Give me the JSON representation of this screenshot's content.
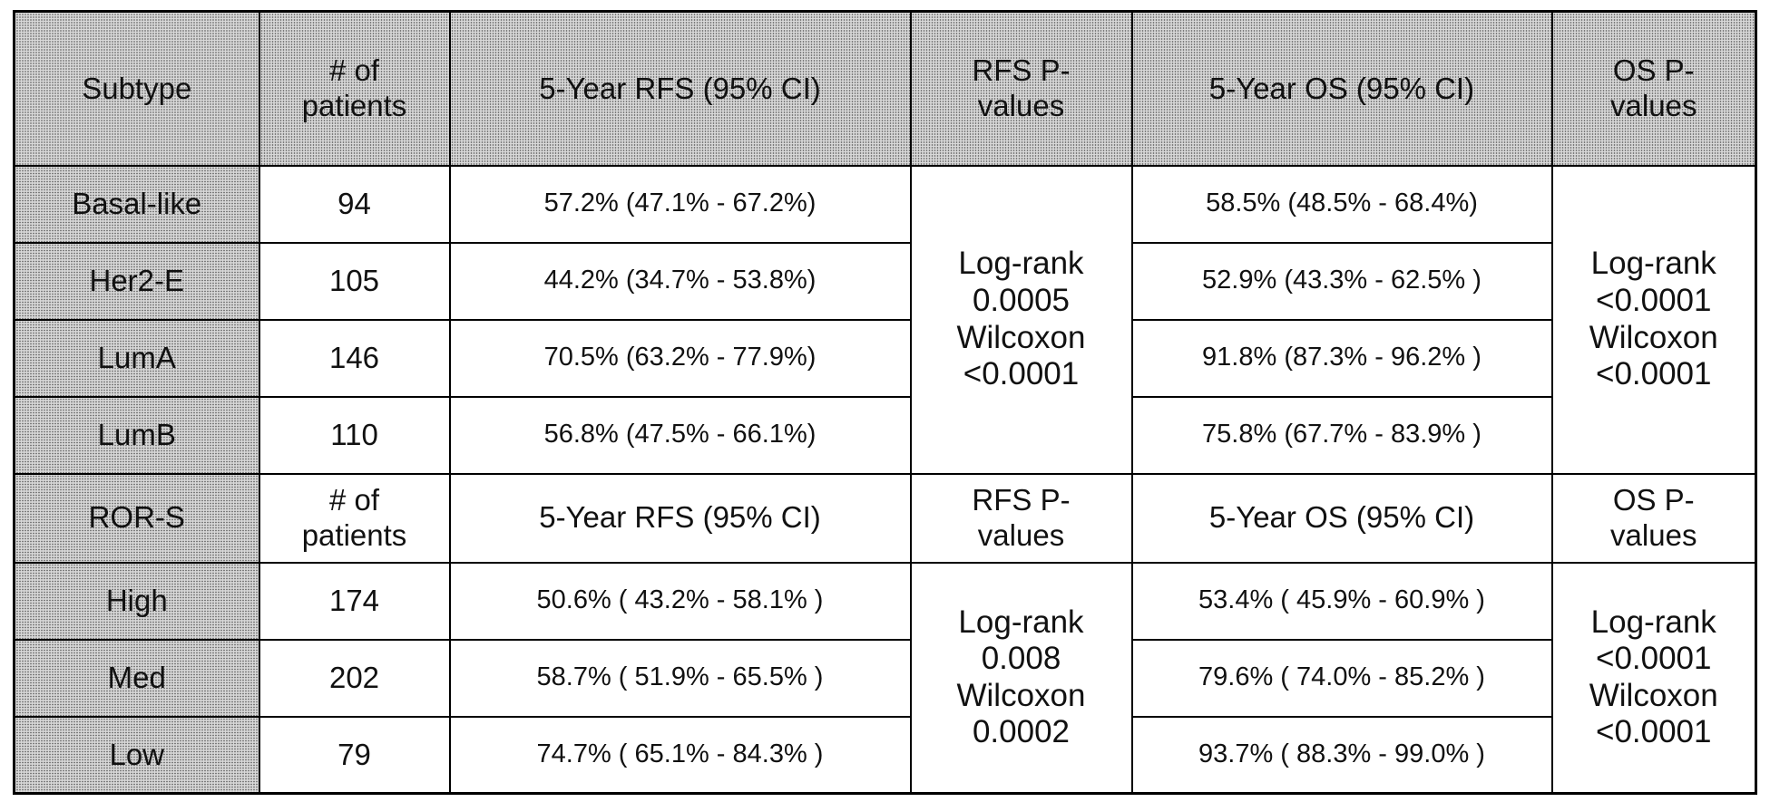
{
  "subtype_table": {
    "headers": {
      "subtype": "Subtype",
      "patients": [
        "# of",
        "patients"
      ],
      "rfs": "5-Year RFS (95% CI)",
      "rfs_p": [
        "RFS P-",
        "values"
      ],
      "os": "5-Year OS (95% CI)",
      "os_p": [
        "OS P-",
        "values"
      ]
    },
    "rows": [
      {
        "label": "Basal-like",
        "n": "94",
        "rfs": "57.2% (47.1% - 67.2%)",
        "os": "58.5% (48.5% - 68.4%)"
      },
      {
        "label": "Her2-E",
        "n": "105",
        "rfs": "44.2% (34.7% - 53.8%)",
        "os": "52.9% (43.3% - 62.5% )"
      },
      {
        "label": "LumA",
        "n": "146",
        "rfs": "70.5% (63.2% - 77.9%)",
        "os": "91.8% (87.3% - 96.2% )"
      },
      {
        "label": "LumB",
        "n": "110",
        "rfs": "56.8% (47.5% - 66.1%)",
        "os": "75.8% (67.7% - 83.9% )"
      }
    ],
    "rfs_p": [
      "Log-rank",
      "0.0005",
      "Wilcoxon",
      "<0.0001"
    ],
    "os_p": [
      "Log-rank",
      "<0.0001",
      "Wilcoxon",
      "<0.0001"
    ]
  },
  "ror_table": {
    "headers": {
      "subtype": "ROR-S",
      "patients": [
        "# of",
        "patients"
      ],
      "rfs": "5-Year RFS (95% CI)",
      "rfs_p": [
        "RFS P-",
        "values"
      ],
      "os": "5-Year OS (95% CI)",
      "os_p": [
        "OS P-",
        "values"
      ]
    },
    "rows": [
      {
        "label": "High",
        "n": "174",
        "rfs": "50.6% ( 43.2% - 58.1% )",
        "os": "53.4% ( 45.9% - 60.9% )"
      },
      {
        "label": "Med",
        "n": "202",
        "rfs": "58.7% ( 51.9% - 65.5% )",
        "os": "79.6% ( 74.0% - 85.2% )"
      },
      {
        "label": "Low",
        "n": "79",
        "rfs": "74.7% ( 65.1% - 84.3% )",
        "os": "93.7% ( 88.3% - 99.0% )"
      }
    ],
    "rfs_p": [
      "Log-rank",
      "0.008",
      "Wilcoxon",
      "0.0002"
    ],
    "os_p": [
      "Log-rank",
      "<0.0001",
      "Wilcoxon",
      "<0.0001"
    ]
  }
}
